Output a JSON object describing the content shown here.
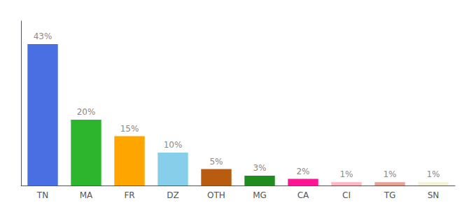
{
  "chart_data": {
    "type": "bar",
    "categories": [
      "TN",
      "MA",
      "FR",
      "DZ",
      "OTH",
      "MG",
      "CA",
      "CI",
      "TG",
      "SN"
    ],
    "values": [
      43,
      20,
      15,
      10,
      5,
      3,
      2,
      1,
      1,
      1
    ],
    "value_labels": [
      "43%",
      "20%",
      "15%",
      "10%",
      "5%",
      "3%",
      "2%",
      "1%",
      "1%",
      "1%"
    ],
    "colors": [
      "#4a6fe3",
      "#2db52d",
      "#ffa500",
      "#87ceeb",
      "#b85c10",
      "#1e8c1e",
      "#ff1493",
      "#ffb6c1",
      "#e8a090",
      "#f5f0d8"
    ],
    "ylim": [
      0,
      50
    ],
    "data_labels": true,
    "tick_labels": "x",
    "grid": false
  }
}
